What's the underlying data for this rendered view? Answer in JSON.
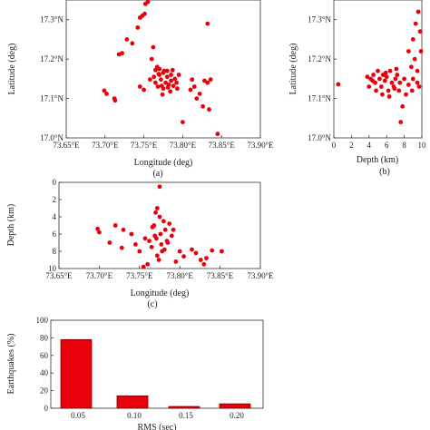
{
  "chart_data": [
    {
      "id": "a",
      "type": "scatter",
      "caption": "(a)",
      "xlabel": "Longitude (deg)",
      "ylabel": "Latitude (deg)",
      "xlim": [
        73.65,
        73.9
      ],
      "ylim": [
        17.0,
        17.35
      ],
      "xticks": [
        "73.65°E",
        "73.70°E",
        "73.75°E",
        "73.80°E",
        "73.85°E",
        "73.90°E"
      ],
      "yticks": [
        "17.0°N",
        "17.1°N",
        "17.2°N",
        "17.3°N"
      ],
      "points": [
        [
          73.755,
          17.345
        ],
        [
          73.752,
          17.34
        ],
        [
          73.745,
          17.305
        ],
        [
          73.748,
          17.31
        ],
        [
          73.728,
          17.25
        ],
        [
          73.742,
          17.28
        ],
        [
          73.722,
          17.215
        ],
        [
          73.718,
          17.212
        ],
        [
          73.76,
          17.2
        ],
        [
          73.762,
          17.23
        ],
        [
          73.751,
          17.315
        ],
        [
          73.832,
          17.29
        ],
        [
          73.735,
          17.24
        ],
        [
          73.767,
          17.18
        ],
        [
          73.765,
          17.172
        ],
        [
          73.77,
          17.16
        ],
        [
          73.775,
          17.165
        ],
        [
          73.78,
          17.17
        ],
        [
          73.785,
          17.16
        ],
        [
          73.772,
          17.148
        ],
        [
          73.778,
          17.14
        ],
        [
          73.782,
          17.135
        ],
        [
          73.768,
          17.13
        ],
        [
          73.775,
          17.125
        ],
        [
          73.79,
          17.15
        ],
        [
          73.792,
          17.14
        ],
        [
          73.787,
          17.172
        ],
        [
          73.77,
          17.175
        ],
        [
          73.763,
          17.155
        ],
        [
          73.773,
          17.132
        ],
        [
          73.78,
          17.155
        ],
        [
          73.785,
          17.145
        ],
        [
          73.776,
          17.17
        ],
        [
          73.769,
          17.162
        ],
        [
          73.781,
          17.128
        ],
        [
          73.765,
          17.14
        ],
        [
          73.788,
          17.132
        ],
        [
          73.795,
          17.16
        ],
        [
          73.793,
          17.125
        ],
        [
          73.758,
          17.148
        ],
        [
          73.784,
          17.118
        ],
        [
          73.774,
          17.11
        ],
        [
          73.699,
          17.12
        ],
        [
          73.702,
          17.112
        ],
        [
          73.712,
          17.1
        ],
        [
          73.713,
          17.095
        ],
        [
          73.745,
          17.13
        ],
        [
          73.75,
          17.122
        ],
        [
          73.815,
          17.13
        ],
        [
          73.81,
          17.122
        ],
        [
          73.822,
          17.112
        ],
        [
          73.818,
          17.1
        ],
        [
          73.832,
          17.14
        ],
        [
          73.828,
          17.145
        ],
        [
          73.836,
          17.148
        ],
        [
          73.826,
          17.08
        ],
        [
          73.834,
          17.072
        ],
        [
          73.8,
          17.04
        ],
        [
          73.845,
          17.01
        ],
        [
          73.812,
          17.148
        ]
      ]
    },
    {
      "id": "b",
      "type": "scatter",
      "caption": "(b)",
      "xlabel": "Depth (km)",
      "ylabel": "Latitude (deg)",
      "xlim": [
        0,
        10
      ],
      "ylim": [
        17.0,
        17.35
      ],
      "xticks": [
        "0",
        "2",
        "4",
        "6",
        "8",
        "10"
      ],
      "yticks": [
        "17.0°N",
        "17.1°N",
        "17.2°N",
        "17.3°N"
      ],
      "points": [
        [
          0.5,
          17.136
        ],
        [
          4.0,
          17.13
        ],
        [
          4.2,
          17.15
        ],
        [
          4.5,
          17.16
        ],
        [
          4.7,
          17.14
        ],
        [
          5.0,
          17.17
        ],
        [
          5.2,
          17.15
        ],
        [
          5.4,
          17.13
        ],
        [
          5.6,
          17.16
        ],
        [
          5.8,
          17.145
        ],
        [
          6.0,
          17.155
        ],
        [
          6.2,
          17.12
        ],
        [
          6.4,
          17.17
        ],
        [
          6.6,
          17.14
        ],
        [
          6.8,
          17.13
        ],
        [
          7.0,
          17.15
        ],
        [
          7.2,
          17.16
        ],
        [
          7.5,
          17.14
        ],
        [
          8.0,
          17.15
        ],
        [
          8.5,
          17.135
        ],
        [
          9.0,
          17.15
        ],
        [
          9.5,
          17.14
        ],
        [
          4.8,
          17.12
        ],
        [
          5.5,
          17.11
        ],
        [
          6.3,
          17.105
        ],
        [
          7.4,
          17.12
        ],
        [
          8.2,
          17.11
        ],
        [
          7.8,
          17.08
        ],
        [
          7.6,
          17.04
        ],
        [
          8.5,
          17.22
        ],
        [
          9.0,
          17.25
        ],
        [
          9.3,
          17.29
        ],
        [
          9.6,
          17.32
        ],
        [
          9.8,
          17.27
        ],
        [
          9.2,
          17.2
        ],
        [
          9.9,
          17.22
        ],
        [
          8.8,
          17.18
        ],
        [
          9.5,
          17.17
        ],
        [
          3.8,
          17.155
        ],
        [
          4.4,
          17.145
        ],
        [
          5.9,
          17.165
        ],
        [
          6.9,
          17.125
        ],
        [
          8.9,
          17.12
        ],
        [
          7.1,
          17.175
        ],
        [
          9.7,
          17.13
        ]
      ]
    },
    {
      "id": "c",
      "type": "scatter",
      "caption": "(c)",
      "xlabel": "Longitude (deg)",
      "ylabel": "Depth (km)",
      "xlim": [
        73.65,
        73.9
      ],
      "ylim": [
        10,
        0
      ],
      "xticks": [
        "73.65°E",
        "73.70°E",
        "73.75°E",
        "73.80°E",
        "73.85°E",
        "73.90°E"
      ],
      "yticks": [
        "0",
        "2",
        "4",
        "6",
        "8",
        "10"
      ],
      "points": [
        [
          73.775,
          0.5
        ],
        [
          73.772,
          3.0
        ],
        [
          73.77,
          3.5
        ],
        [
          73.775,
          4.0
        ],
        [
          73.78,
          4.5
        ],
        [
          73.768,
          5.0
        ],
        [
          73.782,
          5.5
        ],
        [
          73.776,
          6.0
        ],
        [
          73.771,
          6.5
        ],
        [
          73.785,
          7.0
        ],
        [
          73.765,
          7.5
        ],
        [
          73.778,
          8.0
        ],
        [
          73.772,
          8.5
        ],
        [
          73.787,
          4.8
        ],
        [
          73.766,
          5.2
        ],
        [
          73.79,
          6.2
        ],
        [
          73.762,
          6.8
        ],
        [
          73.781,
          7.8
        ],
        [
          73.774,
          9.0
        ],
        [
          73.76,
          9.5
        ],
        [
          73.755,
          9.8
        ],
        [
          73.75,
          8.0
        ],
        [
          73.745,
          7.2
        ],
        [
          73.74,
          6.0
        ],
        [
          73.73,
          5.5
        ],
        [
          73.72,
          5.0
        ],
        [
          73.7,
          5.8
        ],
        [
          73.698,
          5.4
        ],
        [
          73.713,
          7.0
        ],
        [
          73.728,
          7.6
        ],
        [
          73.8,
          8.0
        ],
        [
          73.805,
          8.6
        ],
        [
          73.815,
          7.8
        ],
        [
          73.82,
          8.2
        ],
        [
          73.826,
          9.0
        ],
        [
          73.83,
          9.5
        ],
        [
          73.833,
          8.8
        ],
        [
          73.84,
          7.9
        ],
        [
          73.852,
          8.0
        ],
        [
          73.795,
          9.2
        ],
        [
          73.792,
          5.5
        ],
        [
          73.784,
          6.8
        ],
        [
          73.769,
          6.2
        ],
        [
          73.777,
          7.2
        ],
        [
          73.757,
          6.5
        ]
      ]
    },
    {
      "id": "d",
      "type": "bar",
      "xlabel": "RMS (sec)",
      "ylabel": "Earthquakes (%)",
      "ylim": [
        0,
        100
      ],
      "categories": [
        "0.05",
        "0.10",
        "0.15",
        "0.20"
      ],
      "values": [
        78,
        14,
        2,
        5
      ],
      "yticks": [
        "0",
        "20",
        "40",
        "60",
        "80",
        "100"
      ]
    }
  ]
}
